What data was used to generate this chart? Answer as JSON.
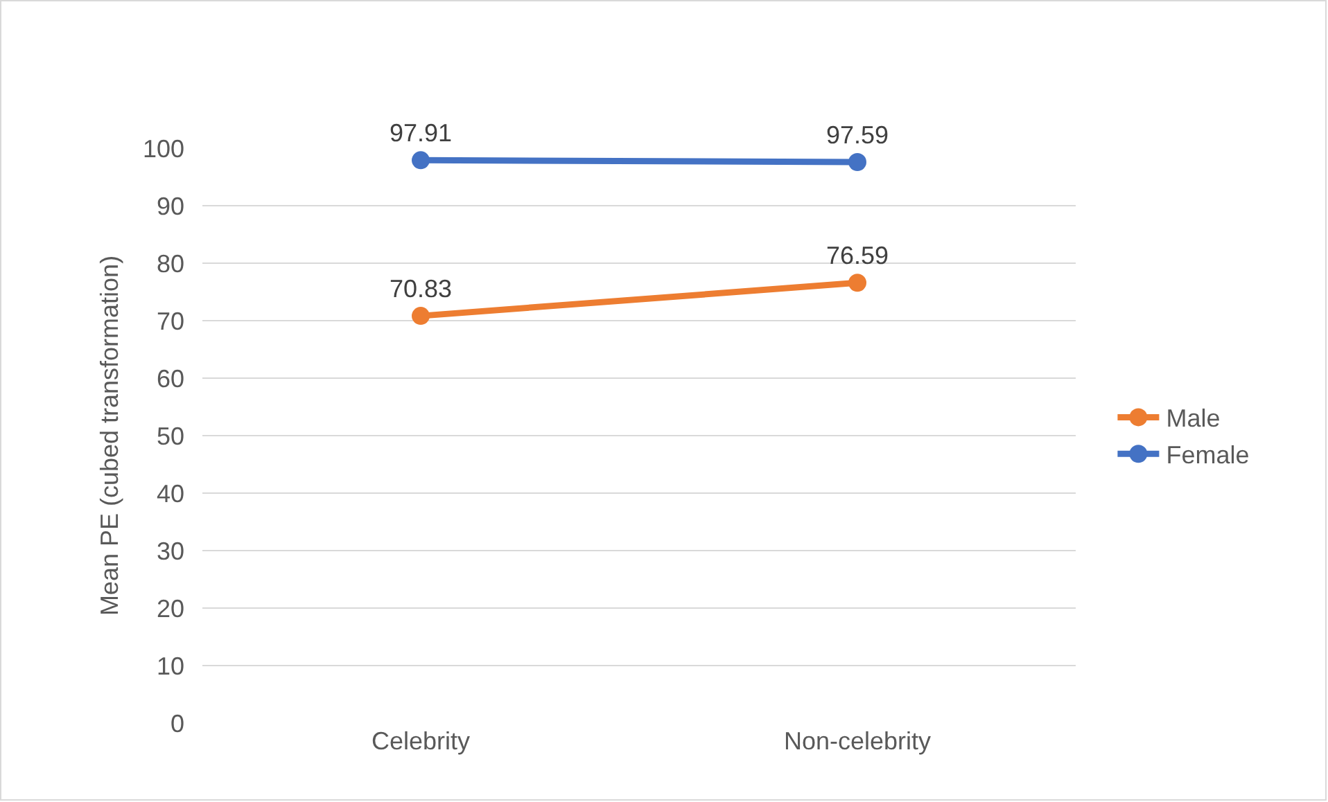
{
  "chart_data": {
    "type": "line",
    "ylabel": "Mean PE (cubed transformation)",
    "categories": [
      "Celebrity",
      "Non-celebrity"
    ],
    "series": [
      {
        "name": "Male",
        "color": "#ed7d31",
        "values": [
          70.83,
          76.59
        ]
      },
      {
        "name": "Female",
        "color": "#4472c4",
        "values": [
          97.91,
          97.59
        ]
      }
    ],
    "ylim": [
      0,
      100
    ],
    "yticks": [
      0,
      10,
      20,
      30,
      40,
      50,
      60,
      70,
      80,
      90,
      100
    ],
    "grid": "y",
    "legend": "right",
    "marker": "circle",
    "line_style": "solid",
    "data_labels": true
  }
}
